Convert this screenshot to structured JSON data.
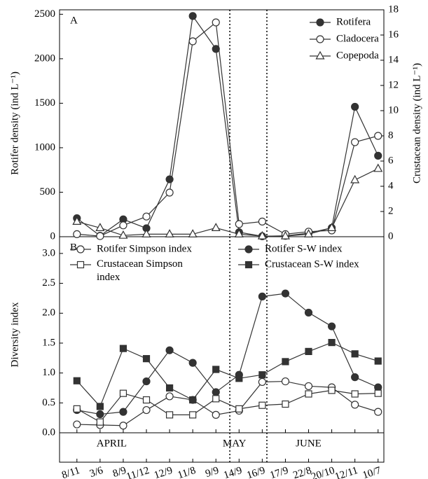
{
  "chart_data": [
    {
      "type": "line",
      "panel_label": "A",
      "y_label": "Rotifer density (ind L⁻¹)",
      "y2_label": "Crustacean density (ind L⁻¹)",
      "ylim": [
        0,
        2550
      ],
      "yticks": [
        0,
        500,
        1000,
        1500,
        2000,
        2500
      ],
      "y2lim": [
        0,
        18
      ],
      "y2ticks": [
        0,
        2,
        4,
        6,
        8,
        10,
        12,
        14,
        16,
        18
      ],
      "legend": "upper-right",
      "series": [
        {
          "name": "Rotifera",
          "color": "#333333",
          "marker": "circle",
          "filled": true,
          "values": [
            208,
            10,
            195,
            95,
            645,
            2480,
            2110,
            50,
            5,
            10,
            40,
            100,
            1460,
            910
          ]
        },
        {
          "name": "Cladocera",
          "color": "#333333",
          "marker": "circle",
          "filled": false,
          "axis": "y2",
          "values": [
            0.2,
            0.05,
            0.9,
            1.6,
            3.5,
            15.5,
            17.0,
            1.0,
            1.2,
            0.2,
            0.4,
            0.5,
            7.5,
            8.0
          ]
        },
        {
          "name": "Copepoda",
          "color": "#333333",
          "marker": "triangle",
          "filled": false,
          "axis": "y2",
          "values": [
            1.2,
            0.7,
            0.1,
            0.2,
            0.2,
            0.2,
            0.7,
            0.2,
            0.05,
            0.05,
            0.2,
            0.7,
            4.5,
            5.4
          ]
        }
      ]
    },
    {
      "type": "line",
      "panel_label": "B",
      "y_label": "Diversity index",
      "categories": [
        "8/11",
        "3/6",
        "8/9",
        "11/12",
        "12/9",
        "11/8",
        "9/9",
        "14/9",
        "16/9",
        "17/9",
        "22/8",
        "20/10",
        "12/11",
        "10/7"
      ],
      "period_labels": [
        "APRIL",
        "MAY",
        "JUNE"
      ],
      "ylim": [
        0,
        3.28
      ],
      "yticks": [
        {
          "value": 0,
          "label": "0.0"
        },
        {
          "value": 0.5,
          "label": "0.5"
        },
        {
          "value": 1,
          "label": "1.0"
        },
        {
          "value": 1.5,
          "label": "1.5"
        },
        {
          "value": 2,
          "label": "2.0"
        },
        {
          "value": 2.5,
          "label": "2.5"
        },
        {
          "value": 3,
          "label": "3.0"
        }
      ],
      "legend": "top",
      "series": [
        {
          "name": "Rotifer Simpson index",
          "color": "#333333",
          "marker": "circle",
          "filled": false,
          "values": [
            0.14,
            0.13,
            0.12,
            0.38,
            0.61,
            0.55,
            0.3,
            0.37,
            0.85,
            0.86,
            0.78,
            0.76,
            0.47,
            0.35
          ]
        },
        {
          "name": "Rotifer S-W index",
          "color": "#333333",
          "marker": "circle",
          "filled": true,
          "values": [
            0.38,
            0.31,
            0.35,
            0.86,
            1.38,
            1.17,
            0.68,
            0.97,
            2.28,
            2.33,
            2.01,
            1.78,
            0.93,
            0.76
          ]
        },
        {
          "name": "Crustacean Simpson index",
          "color": "#333333",
          "marker": "square",
          "filled": false,
          "values": [
            0.4,
            0.18,
            0.66,
            0.55,
            0.3,
            0.3,
            0.57,
            0.4,
            0.46,
            0.48,
            0.65,
            0.71,
            0.65,
            0.66
          ]
        },
        {
          "name": "Crustacean S-W index",
          "color": "#333333",
          "marker": "square",
          "filled": true,
          "values": [
            0.87,
            0.44,
            1.41,
            1.24,
            0.75,
            0.55,
            1.06,
            0.91,
            0.97,
            1.19,
            1.36,
            1.51,
            1.32,
            1.2
          ]
        }
      ]
    }
  ]
}
